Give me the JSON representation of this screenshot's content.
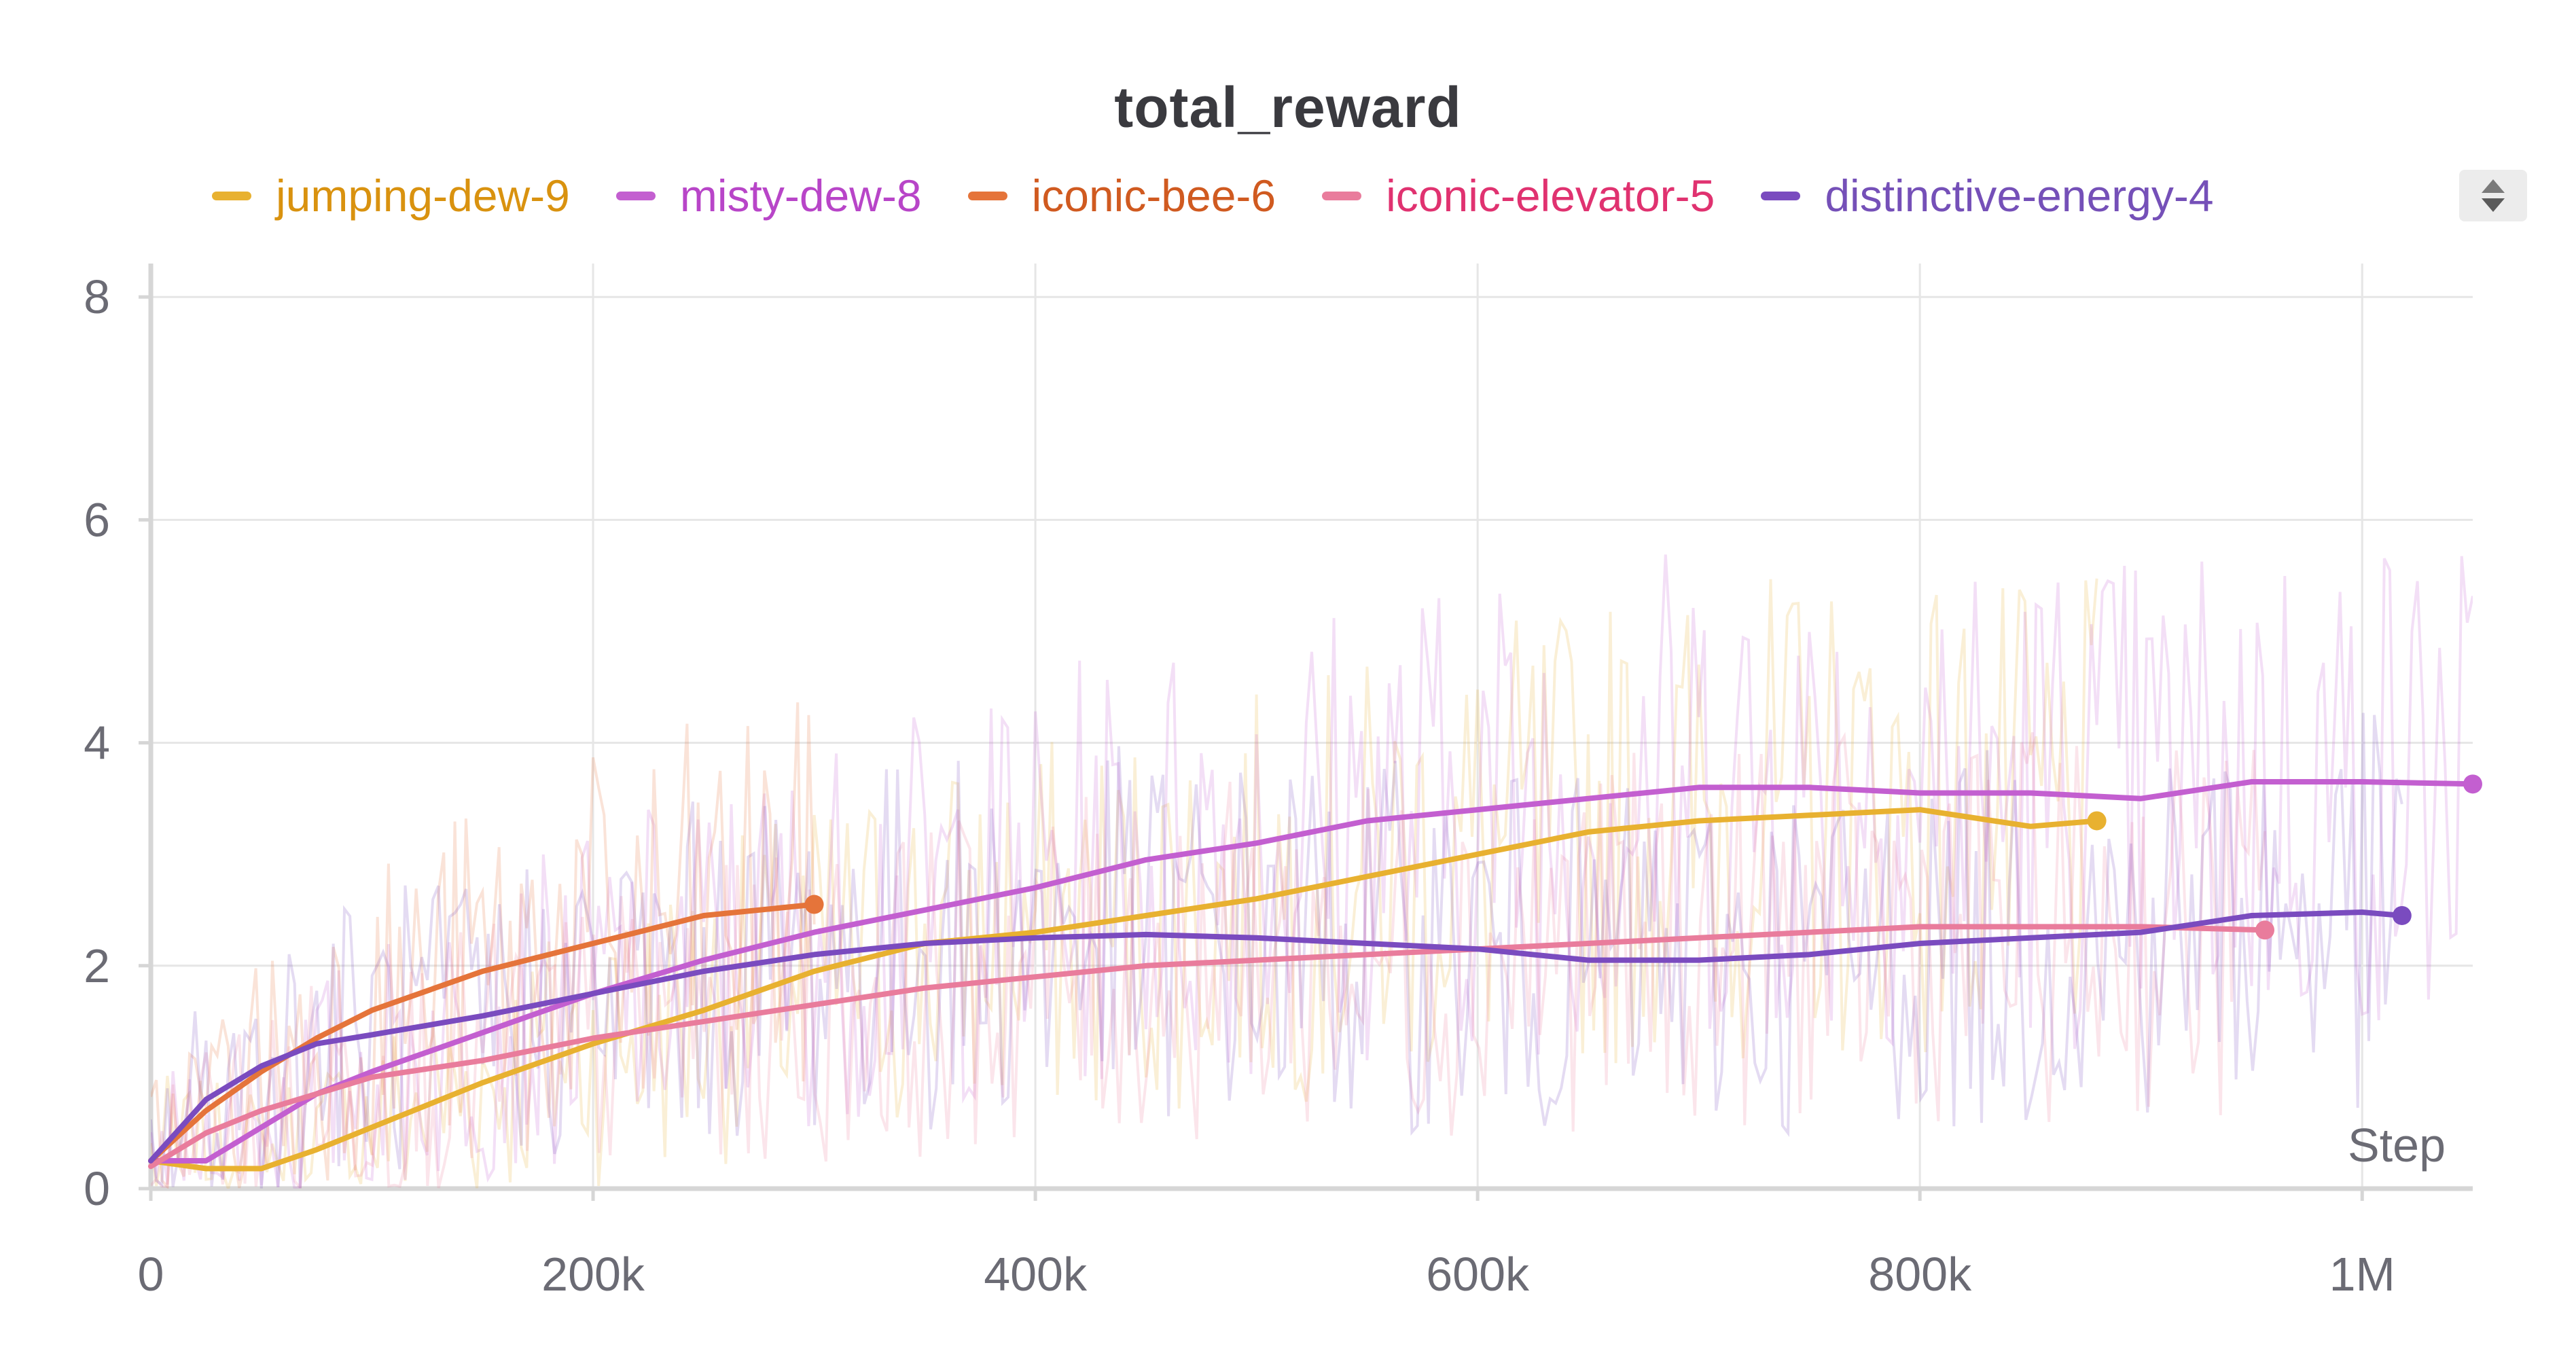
{
  "chart_data": {
    "type": "line",
    "title": "total_reward",
    "xlabel": "Step",
    "ylabel": "",
    "xlim": [
      0,
      1050000
    ],
    "ylim": [
      0,
      8.3
    ],
    "x_ticks": [
      {
        "value": 0,
        "label": "0"
      },
      {
        "value": 200000,
        "label": "200k"
      },
      {
        "value": 400000,
        "label": "400k"
      },
      {
        "value": 600000,
        "label": "600k"
      },
      {
        "value": 800000,
        "label": "800k"
      },
      {
        "value": 1000000,
        "label": "1M"
      }
    ],
    "y_ticks": [
      {
        "value": 0,
        "label": "0"
      },
      {
        "value": 2,
        "label": "2"
      },
      {
        "value": 4,
        "label": "4"
      },
      {
        "value": 6,
        "label": "6"
      },
      {
        "value": 8,
        "label": "8"
      }
    ],
    "grid": true,
    "legend_position": "top",
    "series": [
      {
        "name": "jumping-dew-9",
        "color": "#e8b130",
        "label_color": "#d9920f",
        "x": [
          0,
          25000,
          50000,
          75000,
          100000,
          150000,
          200000,
          250000,
          300000,
          350000,
          400000,
          450000,
          500000,
          550000,
          600000,
          650000,
          700000,
          750000,
          800000,
          850000,
          880000
        ],
        "y": [
          0.25,
          0.18,
          0.18,
          0.35,
          0.55,
          0.95,
          1.3,
          1.6,
          1.95,
          2.2,
          2.3,
          2.45,
          2.6,
          2.8,
          3.0,
          3.2,
          3.3,
          3.35,
          3.4,
          3.25,
          3.3
        ]
      },
      {
        "name": "misty-dew-8",
        "color": "#c35fd0",
        "label_color": "#b845c8",
        "x": [
          0,
          25000,
          50000,
          75000,
          100000,
          150000,
          200000,
          250000,
          300000,
          350000,
          400000,
          450000,
          500000,
          550000,
          600000,
          650000,
          700000,
          750000,
          800000,
          850000,
          900000,
          950000,
          1000000,
          1050000
        ],
        "y": [
          0.25,
          0.25,
          0.55,
          0.85,
          1.05,
          1.4,
          1.75,
          2.05,
          2.3,
          2.5,
          2.7,
          2.95,
          3.1,
          3.3,
          3.4,
          3.5,
          3.6,
          3.6,
          3.55,
          3.55,
          3.5,
          3.65,
          3.65,
          3.63
        ]
      },
      {
        "name": "iconic-bee-6",
        "color": "#e5743a",
        "label_color": "#d05a20",
        "x": [
          0,
          25000,
          50000,
          75000,
          100000,
          150000,
          200000,
          250000,
          300000
        ],
        "y": [
          0.25,
          0.7,
          1.05,
          1.35,
          1.6,
          1.95,
          2.2,
          2.45,
          2.55
        ]
      },
      {
        "name": "iconic-elevator-5",
        "color": "#e97c9c",
        "label_color": "#e03270",
        "x": [
          0,
          25000,
          50000,
          75000,
          100000,
          150000,
          200000,
          250000,
          300000,
          350000,
          400000,
          450000,
          500000,
          550000,
          600000,
          650000,
          700000,
          750000,
          800000,
          850000,
          900000,
          956000
        ],
        "y": [
          0.2,
          0.5,
          0.7,
          0.85,
          1.0,
          1.15,
          1.35,
          1.5,
          1.65,
          1.8,
          1.9,
          2.0,
          2.05,
          2.1,
          2.15,
          2.2,
          2.25,
          2.3,
          2.35,
          2.35,
          2.35,
          2.32
        ]
      },
      {
        "name": "distinctive-energy-4",
        "color": "#7a4bbf",
        "label_color": "#7550b8",
        "x": [
          0,
          25000,
          50000,
          75000,
          100000,
          150000,
          200000,
          250000,
          300000,
          350000,
          400000,
          450000,
          500000,
          550000,
          600000,
          650000,
          700000,
          750000,
          800000,
          850000,
          900000,
          950000,
          1000000,
          1018000
        ],
        "y": [
          0.25,
          0.8,
          1.1,
          1.3,
          1.38,
          1.55,
          1.75,
          1.95,
          2.1,
          2.2,
          2.25,
          2.28,
          2.25,
          2.2,
          2.15,
          2.05,
          2.05,
          2.1,
          2.2,
          2.25,
          2.3,
          2.45,
          2.48,
          2.45
        ]
      }
    ]
  },
  "legend_scroll": {
    "icon": "up-down-arrows-icon"
  }
}
